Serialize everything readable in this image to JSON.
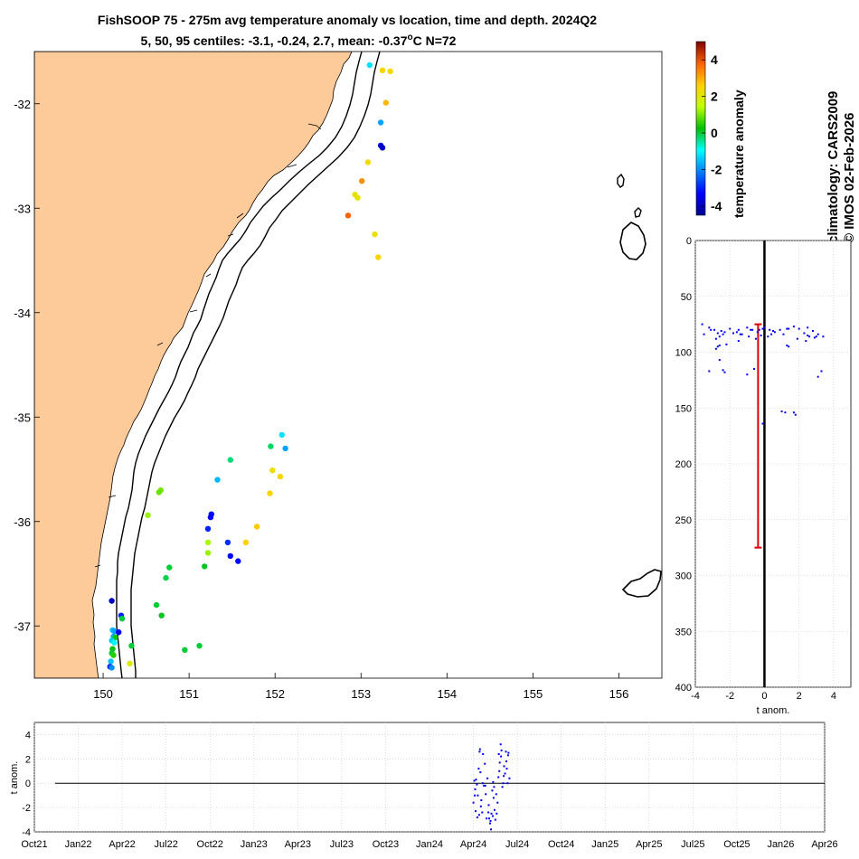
{
  "header": {
    "title_line1": "FishSOOP 75 - 275m avg temperature anomaly vs location, time and depth. 2024Q2",
    "title_line2_prefix": "5, 50, 95 centiles: -3.1, -0.24, 2.7, mean: -0.37",
    "title_line2_sup": "o",
    "title_line2_suffix": "C N=72"
  },
  "side_text": {
    "climatology": "climatology: CARS2009",
    "credit": "© IMOS 02-Feb-2026"
  },
  "colors": {
    "land": "#FDCB99",
    "axis": "#000000",
    "profile_points": "#0000EE",
    "mean_bar": "#DD0000",
    "grid": "#C8C8C8"
  },
  "colorbar": {
    "label": "temperature anomaly",
    "ticks": [
      "4",
      "2",
      "0",
      "-2",
      "-4"
    ],
    "range": [
      -4.5,
      5
    ]
  },
  "chart_data": [
    {
      "type": "scatter",
      "name": "map",
      "xlim": [
        149.2,
        156.5
      ],
      "ylim": [
        -37.5,
        -31.5
      ],
      "xticks": [
        "150",
        "151",
        "152",
        "153",
        "154",
        "155",
        "156"
      ],
      "yticks": [
        "-32",
        "-33",
        "-34",
        "-35",
        "-36",
        "-37"
      ],
      "points": [
        {
          "lon": 153.1,
          "lat": -31.63,
          "t": -1.2
        },
        {
          "lon": 153.25,
          "lat": -31.68,
          "t": 2.5
        },
        {
          "lon": 153.34,
          "lat": -31.69,
          "t": 2.4
        },
        {
          "lon": 153.29,
          "lat": -31.99,
          "t": 2.9
        },
        {
          "lon": 153.23,
          "lat": -32.18,
          "t": -1.8
        },
        {
          "lon": 153.23,
          "lat": -32.4,
          "t": -3.7
        },
        {
          "lon": 153.25,
          "lat": -32.42,
          "t": -3.9
        },
        {
          "lon": 153.08,
          "lat": -32.56,
          "t": 2.4
        },
        {
          "lon": 153.01,
          "lat": -32.74,
          "t": 3.3
        },
        {
          "lon": 152.93,
          "lat": -32.87,
          "t": 2.2
        },
        {
          "lon": 152.96,
          "lat": -32.9,
          "t": 2.1
        },
        {
          "lon": 152.85,
          "lat": -33.07,
          "t": 3.8
        },
        {
          "lon": 153.16,
          "lat": -33.25,
          "t": 2.3
        },
        {
          "lon": 153.2,
          "lat": -33.47,
          "t": 2.5
        },
        {
          "lon": 152.08,
          "lat": -35.17,
          "t": -1.2
        },
        {
          "lon": 151.95,
          "lat": -35.28,
          "t": -0.2
        },
        {
          "lon": 152.12,
          "lat": -35.3,
          "t": -1.8
        },
        {
          "lon": 151.48,
          "lat": -35.41,
          "t": -0.3
        },
        {
          "lon": 151.97,
          "lat": -35.51,
          "t": 2.3
        },
        {
          "lon": 152.06,
          "lat": -35.57,
          "t": 2.5
        },
        {
          "lon": 151.33,
          "lat": -35.6,
          "t": -1.6
        },
        {
          "lon": 150.67,
          "lat": -35.7,
          "t": 1.0
        },
        {
          "lon": 150.65,
          "lat": -35.72,
          "t": 0.9
        },
        {
          "lon": 151.94,
          "lat": -35.73,
          "t": 2.5
        },
        {
          "lon": 151.26,
          "lat": -35.93,
          "t": -3.2
        },
        {
          "lon": 151.25,
          "lat": -35.96,
          "t": -3.4
        },
        {
          "lon": 150.52,
          "lat": -35.94,
          "t": 1.2
        },
        {
          "lon": 151.79,
          "lat": -36.05,
          "t": 2.7
        },
        {
          "lon": 151.22,
          "lat": -36.07,
          "t": -3.0
        },
        {
          "lon": 151.45,
          "lat": -36.2,
          "t": -2.9
        },
        {
          "lon": 151.22,
          "lat": -36.2,
          "t": 1.3
        },
        {
          "lon": 151.66,
          "lat": -36.2,
          "t": 2.6
        },
        {
          "lon": 151.22,
          "lat": -36.3,
          "t": 1.2
        },
        {
          "lon": 151.48,
          "lat": -36.33,
          "t": -3.3
        },
        {
          "lon": 151.57,
          "lat": -36.38,
          "t": -3.2
        },
        {
          "lon": 151.18,
          "lat": -36.43,
          "t": 0.1
        },
        {
          "lon": 150.77,
          "lat": -36.44,
          "t": 0.0
        },
        {
          "lon": 150.73,
          "lat": -36.54,
          "t": -0.1
        },
        {
          "lon": 150.1,
          "lat": -36.76,
          "t": -4.0
        },
        {
          "lon": 150.62,
          "lat": -36.8,
          "t": 0.0
        },
        {
          "lon": 150.68,
          "lat": -36.9,
          "t": 0.1
        },
        {
          "lon": 150.21,
          "lat": -36.9,
          "t": -3.0
        },
        {
          "lon": 150.22,
          "lat": -36.93,
          "t": 0.0
        },
        {
          "lon": 150.11,
          "lat": -37.04,
          "t": -1.5
        },
        {
          "lon": 150.13,
          "lat": -37.05,
          "t": -1.8
        },
        {
          "lon": 150.18,
          "lat": -37.06,
          "t": -3.5
        },
        {
          "lon": 150.12,
          "lat": -37.1,
          "t": -1.7
        },
        {
          "lon": 150.14,
          "lat": -37.11,
          "t": 0.3
        },
        {
          "lon": 150.1,
          "lat": -37.14,
          "t": -1.4
        },
        {
          "lon": 150.13,
          "lat": -37.16,
          "t": -1.0
        },
        {
          "lon": 150.11,
          "lat": -37.22,
          "t": 0.2
        },
        {
          "lon": 150.33,
          "lat": -37.19,
          "t": 0.0
        },
        {
          "lon": 151.12,
          "lat": -37.19,
          "t": 0.0
        },
        {
          "lon": 150.95,
          "lat": -37.23,
          "t": 0.0
        },
        {
          "lon": 150.1,
          "lat": -37.26,
          "t": 0.0
        },
        {
          "lon": 150.12,
          "lat": -37.28,
          "t": 0.5
        },
        {
          "lon": 150.09,
          "lat": -37.34,
          "t": -1.5
        },
        {
          "lon": 150.31,
          "lat": -37.36,
          "t": 2.0
        },
        {
          "lon": 150.08,
          "lat": -37.39,
          "t": -3.0
        },
        {
          "lon": 150.1,
          "lat": -37.4,
          "t": -2.0
        }
      ]
    },
    {
      "type": "scatter",
      "name": "depth profile",
      "xlabel": "t anom.",
      "xlim": [
        -4,
        5
      ],
      "ylim": [
        0,
        400
      ],
      "xticks": [
        "-4",
        "-2",
        "0",
        "2",
        "4"
      ],
      "yticks": [
        "0",
        "50",
        "100",
        "150",
        "200",
        "250",
        "300",
        "350",
        "400"
      ],
      "mean_bar": {
        "anomaly": -0.37,
        "depth_top": 75,
        "depth_bottom": 275
      },
      "points": [
        [
          -3.6,
          75
        ],
        [
          -3.2,
          78
        ],
        [
          -2.9,
          80
        ],
        [
          -2.5,
          81
        ],
        [
          -2.4,
          84
        ],
        [
          -2.0,
          79
        ],
        [
          -1.5,
          80
        ],
        [
          -1.4,
          84
        ],
        [
          -1.0,
          78
        ],
        [
          -0.7,
          80
        ],
        [
          -0.4,
          82
        ],
        [
          -0.3,
          80
        ],
        [
          -0.1,
          79
        ],
        [
          0.0,
          78
        ],
        [
          0.3,
          80
        ],
        [
          0.5,
          81
        ],
        [
          0.9,
          80
        ],
        [
          1.3,
          79
        ],
        [
          1.7,
          77
        ],
        [
          2.0,
          79
        ],
        [
          2.5,
          78
        ],
        [
          2.8,
          81
        ],
        [
          3.1,
          84
        ],
        [
          3.4,
          86
        ],
        [
          -3.5,
          84
        ],
        [
          -3.1,
          80
        ],
        [
          -2.7,
          83
        ],
        [
          -2.6,
          86
        ],
        [
          -2.3,
          82
        ],
        [
          -1.8,
          83
        ],
        [
          -0.9,
          86
        ],
        [
          -0.2,
          85
        ],
        [
          0.6,
          82
        ],
        [
          1.1,
          84
        ],
        [
          1.4,
          79
        ],
        [
          2.3,
          83
        ],
        [
          2.6,
          86
        ],
        [
          3.0,
          86
        ],
        [
          -2.8,
          88
        ],
        [
          -2.6,
          94
        ],
        [
          -2.7,
          95
        ],
        [
          -2.8,
          97
        ],
        [
          -2.2,
          93
        ],
        [
          -1.6,
          82
        ],
        [
          -1.5,
          90
        ],
        [
          -1.3,
          84
        ],
        [
          -0.8,
          80
        ],
        [
          -0.5,
          88
        ],
        [
          0.2,
          86
        ],
        [
          0.4,
          84
        ],
        [
          1.3,
          94
        ],
        [
          1.4,
          95
        ],
        [
          1.9,
          88
        ],
        [
          2.4,
          90
        ],
        [
          2.5,
          85
        ],
        [
          2.9,
          87
        ],
        [
          -2.6,
          107
        ],
        [
          -2.4,
          116
        ],
        [
          -2.3,
          118
        ],
        [
          -3.2,
          117
        ],
        [
          -1.0,
          120
        ],
        [
          -0.6,
          115
        ],
        [
          3.3,
          117
        ],
        [
          3.1,
          122
        ],
        [
          1.0,
          153
        ],
        [
          1.2,
          154
        ],
        [
          1.7,
          154
        ],
        [
          1.8,
          156
        ],
        [
          -0.1,
          164
        ]
      ]
    },
    {
      "type": "scatter",
      "name": "time series",
      "ylabel": "t anom.",
      "ylim": [
        -4,
        5
      ],
      "x_categories": [
        "Oct21",
        "Jan22",
        "Apr22",
        "Jul22",
        "Oct22",
        "Jan23",
        "Apr23",
        "Jul23",
        "Oct23",
        "Jan24",
        "Apr24",
        "Jul24",
        "Oct24",
        "Jan25",
        "Apr25",
        "Jul25",
        "Oct25",
        "Jan26",
        "Apr26"
      ],
      "yticks": [
        "4",
        "2",
        "0",
        "-2",
        "-4"
      ],
      "points": [
        [
          10.0,
          -1.6
        ],
        [
          10.02,
          0.2
        ],
        [
          10.04,
          -0.5
        ],
        [
          10.05,
          -2.3
        ],
        [
          10.08,
          -0.1
        ],
        [
          10.1,
          -1.0
        ],
        [
          10.12,
          1.2
        ],
        [
          10.13,
          -2.6
        ],
        [
          10.15,
          2.8
        ],
        [
          10.16,
          0.9
        ],
        [
          10.18,
          -1.4
        ],
        [
          10.2,
          -2.4
        ],
        [
          10.22,
          2.4
        ],
        [
          10.24,
          -0.2
        ],
        [
          10.26,
          1.6
        ],
        [
          10.28,
          -0.9
        ],
        [
          10.3,
          -2.9
        ],
        [
          10.32,
          0.4
        ],
        [
          10.35,
          -1.8
        ],
        [
          10.36,
          -2.9
        ],
        [
          10.38,
          -3.3
        ],
        [
          10.4,
          -3.8
        ],
        [
          10.41,
          -2.5
        ],
        [
          10.43,
          -0.6
        ],
        [
          10.45,
          0.1
        ],
        [
          10.46,
          -1.2
        ],
        [
          10.48,
          -2.2
        ],
        [
          10.5,
          -3.0
        ],
        [
          10.52,
          -0.9
        ],
        [
          10.55,
          -1.6
        ],
        [
          10.57,
          0.5
        ],
        [
          10.58,
          2.4
        ],
        [
          10.6,
          1.7
        ],
        [
          10.62,
          3.2
        ],
        [
          10.64,
          2.7
        ],
        [
          10.66,
          -0.3
        ],
        [
          10.68,
          0.0
        ],
        [
          10.7,
          1.4
        ],
        [
          10.72,
          0.8
        ],
        [
          10.74,
          2.6
        ],
        [
          10.76,
          1.2
        ],
        [
          10.78,
          0.0
        ],
        [
          10.8,
          2.5
        ],
        [
          10.82,
          0.4
        ],
        [
          10.03,
          -1.0
        ],
        [
          10.06,
          0.3
        ],
        [
          10.09,
          -2.8
        ],
        [
          10.14,
          2.6
        ],
        [
          10.17,
          -1.9
        ],
        [
          10.21,
          0.0
        ],
        [
          10.27,
          -0.2
        ],
        [
          10.34,
          -2.4
        ],
        [
          10.39,
          -3.1
        ],
        [
          10.44,
          -2.7
        ],
        [
          10.47,
          -0.3
        ],
        [
          10.53,
          -2.5
        ],
        [
          10.59,
          1.0
        ],
        [
          10.63,
          2.2
        ],
        [
          10.69,
          0.6
        ],
        [
          10.75,
          1.8
        ],
        [
          10.79,
          2.3
        ]
      ]
    }
  ]
}
